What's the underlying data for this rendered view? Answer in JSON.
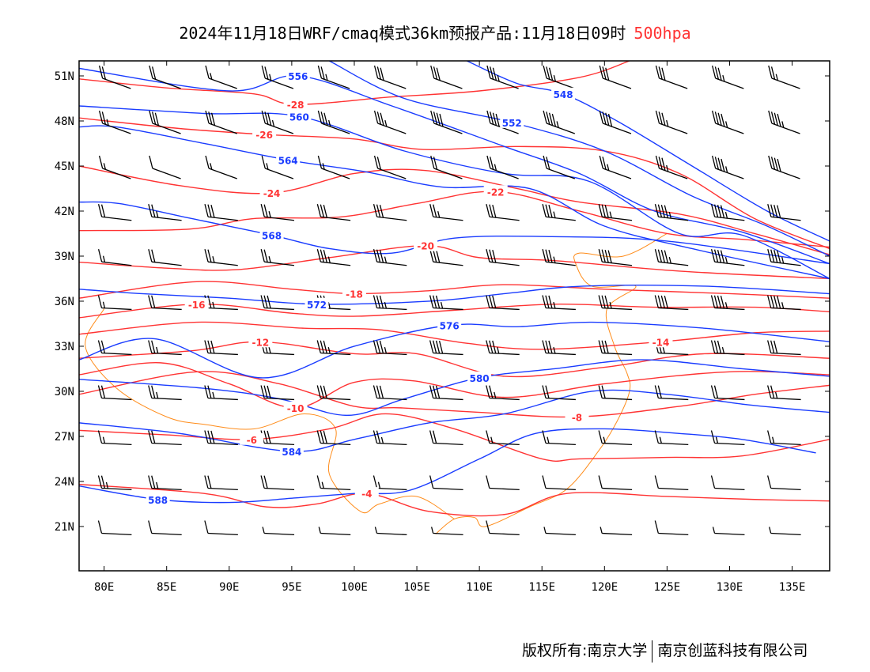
{
  "title": {
    "text": "2024年11月18日WRF/cmaq模式36km预报产品:11月18日09时",
    "level": "500hpa"
  },
  "footer": {
    "left": "版权所有:南京大学",
    "right": "南京创蓝科技有限公司"
  },
  "colors": {
    "height": "#1a3cff",
    "temp": "#ff3333",
    "border": "#ff8c1a",
    "barb": "#000000"
  },
  "axes": {
    "lon_range": [
      78,
      138
    ],
    "lat_range": [
      18.05,
      52
    ],
    "x_ticks": [
      {
        "v": 80,
        "label": "80E"
      },
      {
        "v": 85,
        "label": "85E"
      },
      {
        "v": 90,
        "label": "90E"
      },
      {
        "v": 95,
        "label": "95E"
      },
      {
        "v": 100,
        "label": "100E"
      },
      {
        "v": 105,
        "label": "105E"
      },
      {
        "v": 110,
        "label": "110E"
      },
      {
        "v": 115,
        "label": "115E"
      },
      {
        "v": 120,
        "label": "120E"
      },
      {
        "v": 125,
        "label": "125E"
      },
      {
        "v": 130,
        "label": "130E"
      },
      {
        "v": 135,
        "label": "135E"
      }
    ],
    "y_ticks": [
      {
        "v": 51,
        "label": "51N"
      },
      {
        "v": 48,
        "label": "48N"
      },
      {
        "v": 45,
        "label": "45N"
      },
      {
        "v": 42,
        "label": "42N"
      },
      {
        "v": 39,
        "label": "39N"
      },
      {
        "v": 36,
        "label": "36N"
      },
      {
        "v": 33,
        "label": "33N"
      },
      {
        "v": 30,
        "label": "30N"
      },
      {
        "v": 27,
        "label": "27N"
      },
      {
        "v": 24,
        "label": "24N"
      },
      {
        "v": 21,
        "label": "21N"
      }
    ]
  },
  "height_contours": [
    {
      "value": "548",
      "pts": [
        [
          109,
          52
        ],
        [
          113,
          50.5
        ],
        [
          116.7,
          49.8
        ],
        [
          121,
          48
        ],
        [
          127,
          45
        ],
        [
          133,
          42
        ],
        [
          138,
          40
        ]
      ],
      "label_at": [
        116.7,
        49.8
      ]
    },
    {
      "value": "552",
      "pts": [
        [
          98,
          52
        ],
        [
          104,
          49.5
        ],
        [
          112.6,
          47.9
        ],
        [
          120,
          46
        ],
        [
          127,
          43
        ],
        [
          133,
          41
        ],
        [
          138,
          39
        ]
      ],
      "label_at": [
        112.6,
        47.9
      ]
    },
    {
      "value": "556",
      "pts": [
        [
          78,
          51.5
        ],
        [
          90,
          50
        ],
        [
          95.5,
          51
        ],
        [
          103,
          49
        ],
        [
          112,
          46.3
        ],
        [
          118,
          44.5
        ],
        [
          124,
          42
        ],
        [
          131,
          40.6
        ],
        [
          138,
          38.5
        ]
      ],
      "label_at": [
        95.5,
        51
      ]
    },
    {
      "value": "560",
      "pts": [
        [
          78,
          49
        ],
        [
          88,
          48.5
        ],
        [
          95.6,
          48.3
        ],
        [
          104,
          46
        ],
        [
          112,
          44.5
        ],
        [
          118.7,
          44
        ],
        [
          126,
          40.5
        ],
        [
          131,
          40.4
        ],
        [
          138,
          37.5
        ]
      ],
      "label_at": [
        95.6,
        48.3
      ]
    },
    {
      "value": "564",
      "pts": [
        [
          78,
          47.6
        ],
        [
          81,
          47.6
        ],
        [
          88,
          46.5
        ],
        [
          94.7,
          45.4
        ],
        [
          101,
          44.6
        ],
        [
          107,
          43.6
        ],
        [
          114,
          43.5
        ],
        [
          120,
          41
        ],
        [
          127,
          39.5
        ],
        [
          138,
          37.5
        ]
      ],
      "label_at": [
        94.7,
        45.4
      ]
    },
    {
      "value": "568",
      "pts": [
        [
          78,
          42.6
        ],
        [
          81.2,
          42.5
        ],
        [
          87,
          41.5
        ],
        [
          93.4,
          40.4
        ],
        [
          98,
          39.5
        ],
        [
          103,
          39.2
        ],
        [
          108,
          40.2
        ],
        [
          115.8,
          40.3
        ],
        [
          125,
          40
        ],
        [
          138,
          38.5
        ]
      ],
      "label_at": [
        93.4,
        40.4
      ]
    },
    {
      "value": "572",
      "pts": [
        [
          78,
          36.8
        ],
        [
          83,
          36.5
        ],
        [
          90,
          36.2
        ],
        [
          97,
          35.8
        ],
        [
          106,
          36
        ],
        [
          112,
          36.5
        ],
        [
          118.3,
          37
        ],
        [
          128,
          37
        ],
        [
          138,
          36.5
        ]
      ],
      "label_at": [
        97,
        35.8
      ]
    },
    {
      "value": "576",
      "pts": [
        [
          78,
          32.1
        ],
        [
          84,
          33.5
        ],
        [
          92.5,
          30.9
        ],
        [
          100,
          33
        ],
        [
          107.6,
          34.4
        ],
        [
          113,
          34.3
        ],
        [
          119,
          34.6
        ],
        [
          128,
          34.2
        ],
        [
          138,
          33.3
        ]
      ],
      "label_at": [
        107.6,
        34.4
      ]
    },
    {
      "value": "580",
      "pts": [
        [
          78,
          30.8
        ],
        [
          88,
          30.2
        ],
        [
          94,
          29.5
        ],
        [
          99.4,
          28.4
        ],
        [
          104,
          29.5
        ],
        [
          110,
          30.9
        ],
        [
          116,
          31.5
        ],
        [
          123,
          32.1
        ],
        [
          131,
          31.5
        ],
        [
          138,
          31
        ]
      ],
      "label_at": [
        110,
        30.9
      ]
    },
    {
      "value": "584",
      "pts": [
        [
          78,
          27.9
        ],
        [
          86,
          27.2
        ],
        [
          95,
          26
        ],
        [
          100,
          26.8
        ],
        [
          106,
          27.9
        ],
        [
          112,
          28.5
        ],
        [
          119,
          30
        ],
        [
          125,
          29.8
        ],
        [
          131.5,
          29.1
        ],
        [
          138,
          28.6
        ]
      ],
      "label_at": [
        95,
        26
      ]
    },
    {
      "value": "588",
      "pts": [
        [
          78,
          23.7
        ],
        [
          84.3,
          22.8
        ],
        [
          90,
          22.6
        ],
        [
          95.3,
          22.9
        ],
        [
          100,
          23.2
        ],
        [
          104.4,
          23.4
        ],
        [
          110,
          25.5
        ],
        [
          114.5,
          27.2
        ],
        [
          120,
          27.5
        ],
        [
          125.9,
          27.2
        ],
        [
          131,
          26.8
        ],
        [
          136.9,
          25.9
        ]
      ],
      "label_at": [
        84.3,
        22.8
      ]
    }
  ],
  "temp_contours": [
    {
      "value": "-28",
      "pts": [
        [
          78,
          50.8
        ],
        [
          85,
          50.2
        ],
        [
          92,
          49.8
        ],
        [
          95.3,
          49.1
        ],
        [
          103,
          49.6
        ],
        [
          110,
          50
        ],
        [
          118,
          50.9
        ],
        [
          122,
          52
        ]
      ],
      "label_at": [
        95.3,
        49.1
      ]
    },
    {
      "value": "-26",
      "pts": [
        [
          78,
          48.2
        ],
        [
          86,
          47.5
        ],
        [
          92.8,
          47.1
        ],
        [
          100,
          46.8
        ],
        [
          105.5,
          46.1
        ],
        [
          113,
          46.3
        ],
        [
          120,
          46
        ],
        [
          126,
          44.5
        ],
        [
          132,
          41.5
        ],
        [
          138,
          39.5
        ]
      ],
      "label_at": [
        92.8,
        47.1
      ]
    },
    {
      "value": "-24",
      "pts": [
        [
          78,
          45
        ],
        [
          86,
          43.7
        ],
        [
          93.4,
          43.2
        ],
        [
          100,
          44.5
        ],
        [
          105.7,
          44.7
        ],
        [
          113,
          43.5
        ],
        [
          118,
          42.6
        ],
        [
          126,
          41.8
        ],
        [
          132,
          40.5
        ],
        [
          138,
          39.1
        ]
      ],
      "label_at": [
        93.4,
        43.2
      ]
    },
    {
      "value": "-22",
      "pts": [
        [
          78,
          40.7
        ],
        [
          86.8,
          40.8
        ],
        [
          92,
          41.5
        ],
        [
          98.8,
          41.6
        ],
        [
          105,
          42.5
        ],
        [
          111.3,
          43.3
        ],
        [
          118,
          42
        ],
        [
          125,
          40.5
        ],
        [
          131.3,
          40.1
        ],
        [
          138,
          39.6
        ]
      ],
      "label_at": [
        111.3,
        43.3
      ]
    },
    {
      "value": "-20",
      "pts": [
        [
          78,
          38.6
        ],
        [
          85,
          38.2
        ],
        [
          90.6,
          38.1
        ],
        [
          98,
          38.9
        ],
        [
          105.7,
          39.7
        ],
        [
          110,
          38.9
        ],
        [
          116,
          38.7
        ],
        [
          126,
          38
        ],
        [
          138,
          37.5
        ]
      ],
      "label_at": [
        105.7,
        39.7
      ]
    },
    {
      "value": "-18",
      "pts": [
        [
          78,
          36.2
        ],
        [
          87.4,
          37.3
        ],
        [
          95,
          36.8
        ],
        [
          100,
          36.5
        ],
        [
          106,
          36.7
        ],
        [
          112,
          37.1
        ],
        [
          120,
          36.8
        ],
        [
          130,
          36.5
        ],
        [
          138,
          36.2
        ]
      ],
      "label_at": [
        100,
        36.5
      ]
    },
    {
      "value": "-16",
      "pts": [
        [
          78,
          34.9
        ],
        [
          87.4,
          35.8
        ],
        [
          95,
          35.2
        ],
        [
          100.3,
          35
        ],
        [
          108,
          35.4
        ],
        [
          116,
          35.8
        ],
        [
          124,
          35.6
        ],
        [
          132,
          35.6
        ],
        [
          138,
          35.3
        ]
      ],
      "label_at": [
        87.4,
        35.8
      ]
    },
    {
      "value": "-14",
      "pts": [
        [
          78,
          33.8
        ],
        [
          87.4,
          34.6
        ],
        [
          96,
          34.2
        ],
        [
          102,
          34.1
        ],
        [
          109,
          33.2
        ],
        [
          115,
          32.8
        ],
        [
          124.5,
          33.3
        ],
        [
          132,
          33.9
        ],
        [
          138,
          34
        ]
      ],
      "label_at": [
        124.5,
        33.3
      ]
    },
    {
      "value": "-12",
      "pts": [
        [
          78,
          32.2
        ],
        [
          87,
          32.7
        ],
        [
          92.5,
          33.3
        ],
        [
          100,
          32.5
        ],
        [
          105,
          32.5
        ],
        [
          112,
          31
        ],
        [
          120,
          31.6
        ],
        [
          128,
          32.5
        ],
        [
          138,
          32.2
        ]
      ],
      "label_at": [
        92.5,
        33.3
      ]
    },
    {
      "value": "-10",
      "pts": [
        [
          78,
          31.1
        ],
        [
          84.5,
          31.9
        ],
        [
          90,
          30.5
        ],
        [
          95.3,
          28.9
        ],
        [
          100,
          30.6
        ],
        [
          104.7,
          30.7
        ],
        [
          112,
          29.6
        ],
        [
          120,
          30.5
        ],
        [
          130,
          31.3
        ],
        [
          138,
          31.1
        ]
      ],
      "label_at": [
        95.3,
        28.9
      ]
    },
    {
      "value": "-8",
      "pts": [
        [
          78,
          29.8
        ],
        [
          87.4,
          31.3
        ],
        [
          94,
          30.5
        ],
        [
          100,
          29
        ],
        [
          103.7,
          28.9
        ],
        [
          110,
          28.6
        ],
        [
          117.8,
          28.3
        ],
        [
          126,
          29
        ],
        [
          132,
          29.8
        ],
        [
          138,
          30.4
        ]
      ],
      "label_at": [
        117.8,
        28.3
      ]
    },
    {
      "value": "-6",
      "pts": [
        [
          78,
          27.4
        ],
        [
          85,
          27.1
        ],
        [
          91.8,
          26.8
        ],
        [
          98,
          27.5
        ],
        [
          102.5,
          28.5
        ],
        [
          108,
          27.5
        ],
        [
          115,
          25.5
        ],
        [
          118,
          25.5
        ],
        [
          125,
          25.6
        ],
        [
          131,
          25.7
        ],
        [
          138,
          26.8
        ]
      ],
      "label_at": [
        91.8,
        26.8
      ]
    },
    {
      "value": "-4",
      "pts": [
        [
          78,
          23.8
        ],
        [
          88,
          23.2
        ],
        [
          93,
          22.3
        ],
        [
          97,
          22.5
        ],
        [
          101,
          23.2
        ],
        [
          106,
          22
        ],
        [
          112,
          21.8
        ],
        [
          117,
          23.2
        ],
        [
          125,
          23
        ],
        [
          132,
          22.8
        ],
        [
          138,
          22.7
        ]
      ],
      "label_at": [
        101,
        23.2
      ]
    }
  ],
  "coastline": [
    [
      125,
      40.5
    ],
    [
      121.5,
      39
    ],
    [
      118,
      39.2
    ],
    [
      117.7,
      38.5
    ],
    [
      119,
      37
    ],
    [
      122.5,
      37
    ],
    [
      120.2,
      35.5
    ],
    [
      120.8,
      33
    ],
    [
      121.8,
      31.2
    ],
    [
      122,
      30
    ],
    [
      121,
      28
    ],
    [
      119.5,
      26
    ],
    [
      117,
      23.5
    ],
    [
      114,
      22.3
    ],
    [
      110.5,
      21
    ],
    [
      109.6,
      21.6
    ],
    [
      108,
      21.5
    ],
    [
      106.5,
      20.5
    ]
  ],
  "border": [
    [
      80,
      35.5
    ],
    [
      78.5,
      33
    ],
    [
      81,
      30.2
    ],
    [
      85,
      28.3
    ],
    [
      88,
      27.8
    ],
    [
      92,
      27.5
    ],
    [
      96,
      28.5
    ],
    [
      98.5,
      27.5
    ],
    [
      98,
      24.5
    ],
    [
      100.5,
      22
    ],
    [
      102,
      22.5
    ],
    [
      105,
      23
    ],
    [
      108,
      21.5
    ]
  ],
  "wind_barbs": {
    "lats": [
      50.5,
      47.5,
      44.5,
      41.5,
      38.5,
      35.5,
      32.5,
      29.5,
      26.5,
      23.5,
      20.5
    ],
    "lons": [
      81,
      85,
      89.5,
      94,
      98.5,
      103,
      107.5,
      112,
      116.5,
      121,
      125.5,
      130,
      134.5
    ],
    "speeds": [
      [
        16,
        14,
        12,
        18,
        20,
        22,
        24,
        26,
        28,
        22,
        24,
        26,
        20
      ],
      [
        20,
        22,
        24,
        26,
        26,
        28,
        30,
        32,
        34,
        30,
        28,
        36,
        34
      ],
      [
        10,
        8,
        10,
        12,
        12,
        14,
        16,
        18,
        14,
        20,
        28,
        34,
        30
      ],
      [
        14,
        18,
        22,
        20,
        24,
        24,
        20,
        22,
        26,
        28,
        34,
        36,
        32
      ],
      [
        12,
        14,
        18,
        20,
        26,
        26,
        22,
        24,
        26,
        30,
        36,
        36,
        34
      ],
      [
        12,
        14,
        20,
        22,
        26,
        28,
        26,
        24,
        26,
        28,
        32,
        34,
        34
      ],
      [
        16,
        18,
        22,
        24,
        26,
        28,
        30,
        28,
        26,
        22,
        22,
        26,
        24
      ],
      [
        14,
        18,
        20,
        22,
        22,
        24,
        22,
        18,
        16,
        16,
        14,
        16,
        18
      ],
      [
        12,
        16,
        22,
        24,
        22,
        18,
        14,
        10,
        10,
        10,
        10,
        12,
        12
      ],
      [
        18,
        18,
        16,
        14,
        12,
        10,
        8,
        8,
        6,
        8,
        8,
        8,
        8
      ],
      [
        6,
        6,
        6,
        4,
        4,
        4,
        4,
        6,
        4,
        4,
        6,
        4,
        4
      ]
    ]
  }
}
